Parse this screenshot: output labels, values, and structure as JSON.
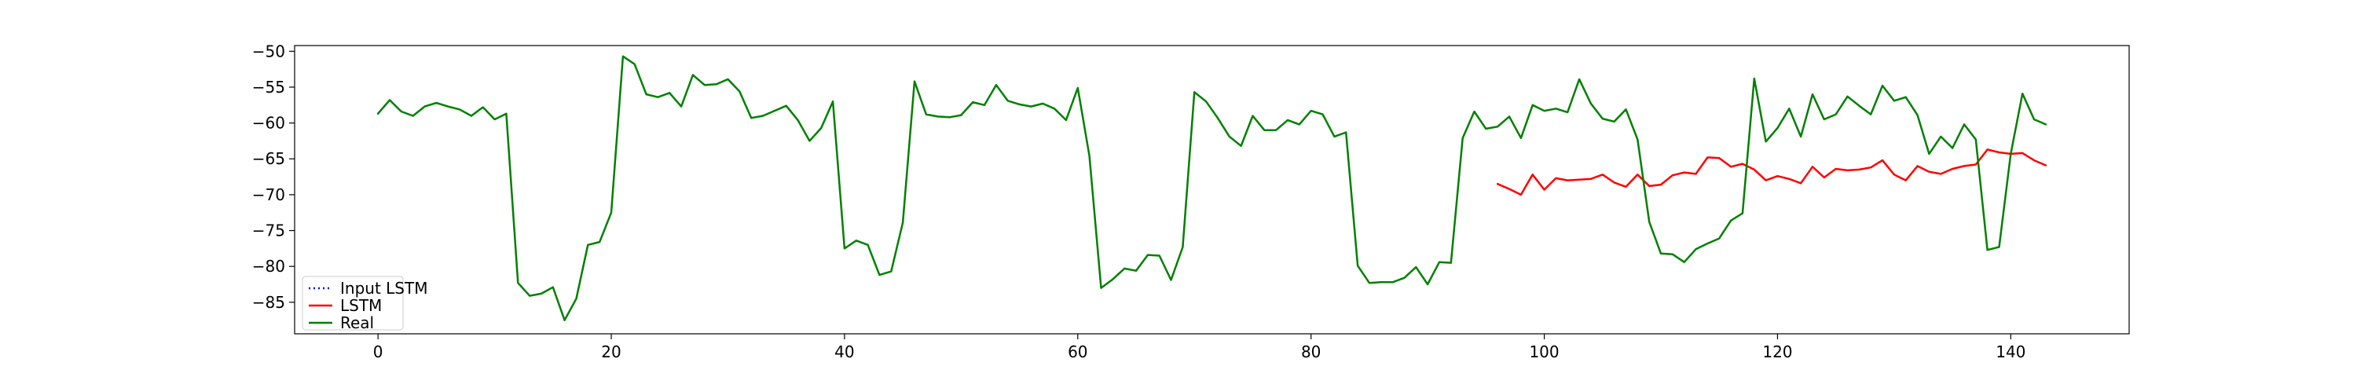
{
  "chart_data": {
    "type": "line",
    "title": "",
    "xlabel": "",
    "ylabel": "",
    "xlim": [
      -7.15,
      150.15
    ],
    "ylim": [
      -89.4,
      -49.2
    ],
    "xticks": [
      0,
      20,
      40,
      60,
      80,
      100,
      120,
      140
    ],
    "yticks": [
      -85,
      -80,
      -75,
      -70,
      -65,
      -60,
      -55,
      -50
    ],
    "grid": false,
    "legend_position": "lower-left",
    "series": [
      {
        "name": "Input LSTM",
        "color": "#0000ff",
        "style": "dotted",
        "x0": 0,
        "values": []
      },
      {
        "name": "LSTM",
        "color": "#ff0000",
        "style": "solid",
        "x0": 96,
        "values": [
          -68.5,
          -69.2,
          -70.0,
          -67.2,
          -69.3,
          -67.7,
          -68.0,
          -67.9,
          -67.8,
          -67.2,
          -68.3,
          -68.9,
          -67.2,
          -68.8,
          -68.6,
          -67.3,
          -66.9,
          -67.1,
          -64.8,
          -64.9,
          -66.1,
          -65.7,
          -66.5,
          -68.0,
          -67.4,
          -67.8,
          -68.4,
          -66.1,
          -67.6,
          -66.4,
          -66.6,
          -66.5,
          -66.2,
          -65.2,
          -67.2,
          -68.0,
          -66.0,
          -66.8,
          -67.1,
          -66.4,
          -66.0,
          -65.8,
          -63.7,
          -64.1,
          -64.3,
          -64.2,
          -65.2,
          -65.9
        ]
      },
      {
        "name": "Real",
        "color": "#008000",
        "style": "solid",
        "x0": 0,
        "values": [
          -58.7,
          -56.8,
          -58.4,
          -59.0,
          -57.7,
          -57.2,
          -57.7,
          -58.1,
          -59.0,
          -57.8,
          -59.5,
          -58.7,
          -82.3,
          -84.1,
          -83.8,
          -82.9,
          -87.5,
          -84.5,
          -77.0,
          -76.6,
          -72.5,
          -50.7,
          -51.8,
          -56.0,
          -56.4,
          -55.8,
          -57.7,
          -53.3,
          -54.7,
          -54.6,
          -53.9,
          -55.6,
          -59.3,
          -59.0,
          -58.3,
          -57.6,
          -59.6,
          -62.5,
          -60.7,
          -57.0,
          -77.5,
          -76.4,
          -77.0,
          -81.2,
          -80.7,
          -73.9,
          -54.2,
          -58.8,
          -59.1,
          -59.2,
          -58.9,
          -57.1,
          -57.5,
          -54.7,
          -56.9,
          -57.4,
          -57.7,
          -57.3,
          -58.0,
          -59.6,
          -55.1,
          -64.6,
          -83.0,
          -81.8,
          -80.3,
          -80.6,
          -78.4,
          -78.5,
          -81.9,
          -77.3,
          -55.7,
          -57.0,
          -59.3,
          -61.9,
          -63.2,
          -59.0,
          -61.0,
          -61.0,
          -59.6,
          -60.2,
          -58.3,
          -58.8,
          -61.9,
          -61.3,
          -79.9,
          -82.3,
          -82.2,
          -82.2,
          -81.6,
          -80.1,
          -82.5,
          -79.4,
          -79.5,
          -62.1,
          -58.4,
          -60.8,
          -60.5,
          -59.1,
          -62.1,
          -57.5,
          -58.3,
          -58.0,
          -58.5,
          -53.9,
          -57.3,
          -59.4,
          -59.8,
          -58.1,
          -62.3,
          -73.8,
          -78.2,
          -78.3,
          -79.4,
          -77.6,
          -76.8,
          -76.1,
          -73.6,
          -72.6,
          -53.8,
          -62.6,
          -60.7,
          -58.0,
          -61.9,
          -56.0,
          -59.5,
          -58.8,
          -56.3,
          -57.6,
          -58.8,
          -54.8,
          -56.9,
          -56.4,
          -58.9,
          -64.3,
          -61.9,
          -63.5,
          -60.2,
          -62.3,
          -77.7,
          -77.3,
          -64.3,
          -55.9,
          -59.5,
          -60.2
        ]
      }
    ]
  }
}
